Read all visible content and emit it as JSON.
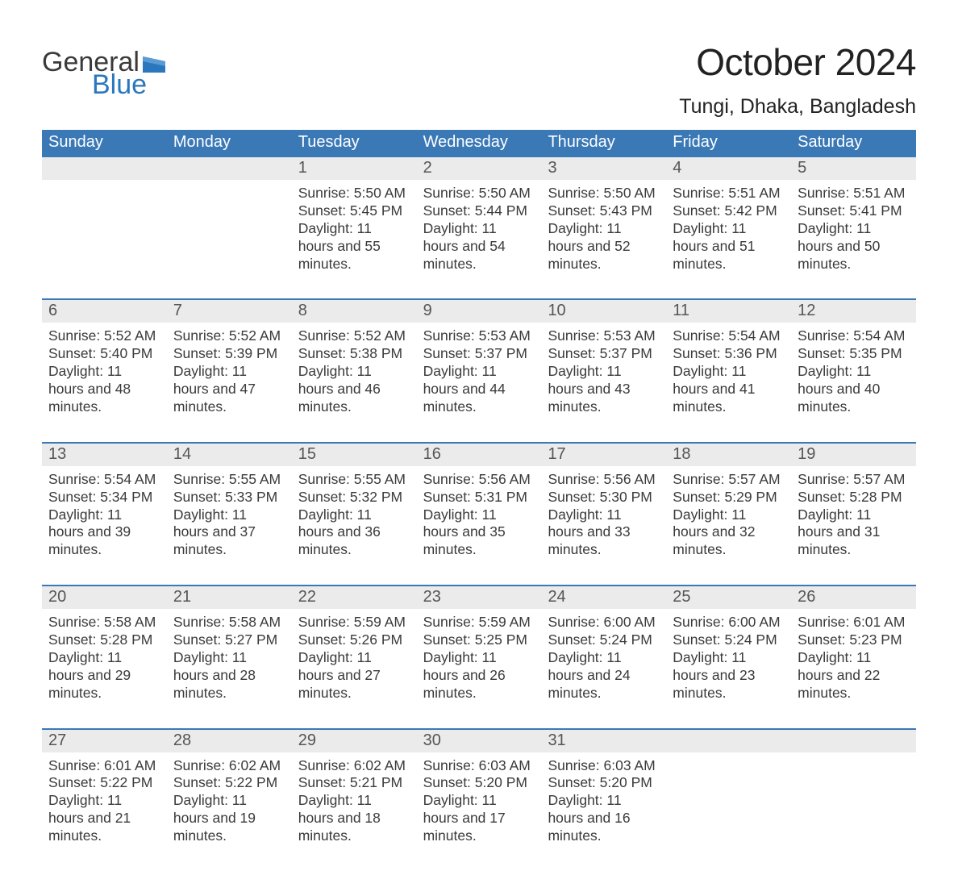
{
  "logo": {
    "word1": "General",
    "word2": "Blue",
    "brand_color": "#2b77bd"
  },
  "title": "October 2024",
  "location": "Tungi, Dhaka, Bangladesh",
  "colors": {
    "header_bg": "#3a78b6",
    "header_text": "#ffffff",
    "daynum_bg": "#ebebeb",
    "daynum_border": "#3a78b6",
    "body_text": "#3a3a3a",
    "daynum_text": "#555555",
    "page_bg": "#ffffff"
  },
  "fonts": {
    "title_size": 46,
    "location_size": 25,
    "dow_size": 20,
    "daynum_size": 20,
    "body_size": 17.5
  },
  "days_of_week": [
    "Sunday",
    "Monday",
    "Tuesday",
    "Wednesday",
    "Thursday",
    "Friday",
    "Saturday"
  ],
  "labels": {
    "sunrise": "Sunrise: ",
    "sunset": "Sunset: ",
    "daylight": "Daylight: "
  },
  "weeks": [
    [
      null,
      null,
      {
        "n": "1",
        "sunrise": "5:50 AM",
        "sunset": "5:45 PM",
        "daylight": "11 hours and 55 minutes."
      },
      {
        "n": "2",
        "sunrise": "5:50 AM",
        "sunset": "5:44 PM",
        "daylight": "11 hours and 54 minutes."
      },
      {
        "n": "3",
        "sunrise": "5:50 AM",
        "sunset": "5:43 PM",
        "daylight": "11 hours and 52 minutes."
      },
      {
        "n": "4",
        "sunrise": "5:51 AM",
        "sunset": "5:42 PM",
        "daylight": "11 hours and 51 minutes."
      },
      {
        "n": "5",
        "sunrise": "5:51 AM",
        "sunset": "5:41 PM",
        "daylight": "11 hours and 50 minutes."
      }
    ],
    [
      {
        "n": "6",
        "sunrise": "5:52 AM",
        "sunset": "5:40 PM",
        "daylight": "11 hours and 48 minutes."
      },
      {
        "n": "7",
        "sunrise": "5:52 AM",
        "sunset": "5:39 PM",
        "daylight": "11 hours and 47 minutes."
      },
      {
        "n": "8",
        "sunrise": "5:52 AM",
        "sunset": "5:38 PM",
        "daylight": "11 hours and 46 minutes."
      },
      {
        "n": "9",
        "sunrise": "5:53 AM",
        "sunset": "5:37 PM",
        "daylight": "11 hours and 44 minutes."
      },
      {
        "n": "10",
        "sunrise": "5:53 AM",
        "sunset": "5:37 PM",
        "daylight": "11 hours and 43 minutes."
      },
      {
        "n": "11",
        "sunrise": "5:54 AM",
        "sunset": "5:36 PM",
        "daylight": "11 hours and 41 minutes."
      },
      {
        "n": "12",
        "sunrise": "5:54 AM",
        "sunset": "5:35 PM",
        "daylight": "11 hours and 40 minutes."
      }
    ],
    [
      {
        "n": "13",
        "sunrise": "5:54 AM",
        "sunset": "5:34 PM",
        "daylight": "11 hours and 39 minutes."
      },
      {
        "n": "14",
        "sunrise": "5:55 AM",
        "sunset": "5:33 PM",
        "daylight": "11 hours and 37 minutes."
      },
      {
        "n": "15",
        "sunrise": "5:55 AM",
        "sunset": "5:32 PM",
        "daylight": "11 hours and 36 minutes."
      },
      {
        "n": "16",
        "sunrise": "5:56 AM",
        "sunset": "5:31 PM",
        "daylight": "11 hours and 35 minutes."
      },
      {
        "n": "17",
        "sunrise": "5:56 AM",
        "sunset": "5:30 PM",
        "daylight": "11 hours and 33 minutes."
      },
      {
        "n": "18",
        "sunrise": "5:57 AM",
        "sunset": "5:29 PM",
        "daylight": "11 hours and 32 minutes."
      },
      {
        "n": "19",
        "sunrise": "5:57 AM",
        "sunset": "5:28 PM",
        "daylight": "11 hours and 31 minutes."
      }
    ],
    [
      {
        "n": "20",
        "sunrise": "5:58 AM",
        "sunset": "5:28 PM",
        "daylight": "11 hours and 29 minutes."
      },
      {
        "n": "21",
        "sunrise": "5:58 AM",
        "sunset": "5:27 PM",
        "daylight": "11 hours and 28 minutes."
      },
      {
        "n": "22",
        "sunrise": "5:59 AM",
        "sunset": "5:26 PM",
        "daylight": "11 hours and 27 minutes."
      },
      {
        "n": "23",
        "sunrise": "5:59 AM",
        "sunset": "5:25 PM",
        "daylight": "11 hours and 26 minutes."
      },
      {
        "n": "24",
        "sunrise": "6:00 AM",
        "sunset": "5:24 PM",
        "daylight": "11 hours and 24 minutes."
      },
      {
        "n": "25",
        "sunrise": "6:00 AM",
        "sunset": "5:24 PM",
        "daylight": "11 hours and 23 minutes."
      },
      {
        "n": "26",
        "sunrise": "6:01 AM",
        "sunset": "5:23 PM",
        "daylight": "11 hours and 22 minutes."
      }
    ],
    [
      {
        "n": "27",
        "sunrise": "6:01 AM",
        "sunset": "5:22 PM",
        "daylight": "11 hours and 21 minutes."
      },
      {
        "n": "28",
        "sunrise": "6:02 AM",
        "sunset": "5:22 PM",
        "daylight": "11 hours and 19 minutes."
      },
      {
        "n": "29",
        "sunrise": "6:02 AM",
        "sunset": "5:21 PM",
        "daylight": "11 hours and 18 minutes."
      },
      {
        "n": "30",
        "sunrise": "6:03 AM",
        "sunset": "5:20 PM",
        "daylight": "11 hours and 17 minutes."
      },
      {
        "n": "31",
        "sunrise": "6:03 AM",
        "sunset": "5:20 PM",
        "daylight": "11 hours and 16 minutes."
      },
      null,
      null
    ]
  ]
}
